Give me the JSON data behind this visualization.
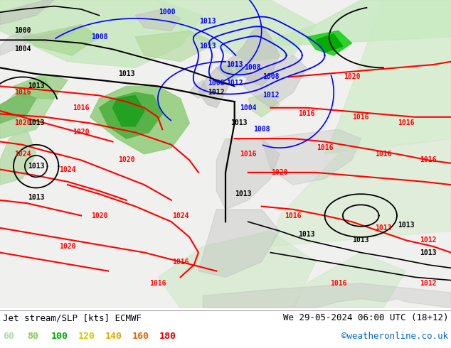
{
  "title_left": "Jet stream/SLP [kts] ECMWF",
  "title_right": "We 29-05-2024 06:00 UTC (18+12)",
  "copyright": "©weatheronline.co.uk",
  "legend_values": [
    "60",
    "80",
    "100",
    "120",
    "140",
    "160",
    "180"
  ],
  "legend_colors": [
    "#aaddaa",
    "#88cc55",
    "#00aa00",
    "#cccc00",
    "#ddaa00",
    "#dd6600",
    "#dd0000"
  ],
  "figsize": [
    6.34,
    4.9
  ],
  "dpi": 100,
  "copyright_color": "#0066cc",
  "map_bg": "#e8f0e8"
}
